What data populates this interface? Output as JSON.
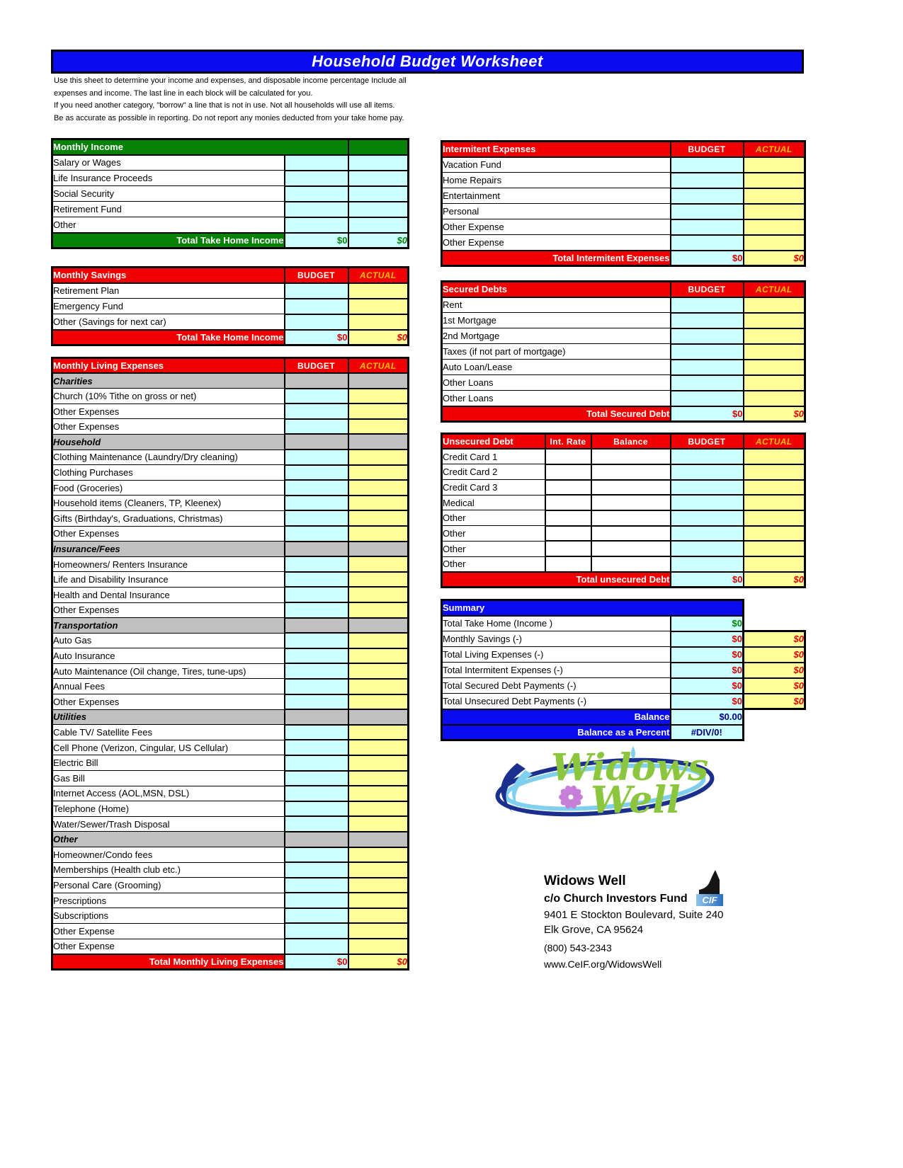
{
  "page": {
    "title": "Household Budget Worksheet",
    "intro_lines": [
      "Use this sheet to determine your income and expenses, and disposable income percentage Include all",
      "expenses and income. The last line in each block will be calculated for you.",
      "If you need another category, \"borrow\" a line that is not in use. Not all households will use all items.",
      "Be as accurate as possible in reporting. Do not report any monies deducted from your take home pay."
    ]
  },
  "colors": {
    "title_blue": "#0b0bf0",
    "header_red": "#f00000",
    "header_green": "#068206",
    "summary_blue": "#0b0bf0",
    "cell_cyan": "#ccffff",
    "cell_yellow": "#ffff99",
    "section_gray": "#c0c0c0",
    "actual_gold": "#ffc000",
    "value_red": "#dd0000",
    "value_green": "#068206",
    "value_navy": "#000080",
    "logo_green": "#8cc63f",
    "logo_navy": "#1b2f8e",
    "logo_lightblue": "#7fd0ee",
    "logo_purple": "#c77fd9"
  },
  "tables": {
    "monthly_income": {
      "header": [
        "Monthly Income"
      ],
      "rows": [
        "Salary or Wages",
        "Life Insurance Proceeds",
        "Social Security",
        "Retirement Fund",
        "Other"
      ],
      "total": {
        "label": "Total Take Home Income",
        "budget": "$0",
        "actual": "$0"
      }
    },
    "monthly_savings": {
      "header": [
        "Monthly Savings",
        "BUDGET",
        "ACTUAL"
      ],
      "rows": [
        "Retirement Plan",
        "Emergency Fund",
        "Other (Savings for next car)"
      ],
      "total": {
        "label": "Total Take Home Income",
        "budget": "$0",
        "actual": "$0"
      }
    },
    "living_expenses": {
      "header": [
        "Monthly Living Expenses",
        "BUDGET",
        "ACTUAL"
      ],
      "rows": [
        {
          "label": "Charities",
          "section": true
        },
        "Church (10% Tithe on gross or net)",
        "Other Expenses",
        "Other Expenses",
        {
          "label": "Household",
          "section": true
        },
        "Clothing Maintenance (Laundry/Dry cleaning)",
        "Clothing Purchases",
        "Food (Groceries)",
        "Household items (Cleaners, TP, Kleenex)",
        "Gifts (Birthday's, Graduations, Christmas)",
        "Other Expenses",
        {
          "label": "Insurance/Fees",
          "section": true
        },
        "Homeowners/ Renters Insurance",
        "Life and Disability Insurance",
        "Health and Dental Insurance",
        "Other Expenses",
        {
          "label": "Transportation",
          "section": true
        },
        "Auto Gas",
        "Auto Insurance",
        "Auto Maintenance (Oil change, Tires, tune-ups)",
        "Annual Fees",
        "Other Expenses",
        {
          "label": "Utilities",
          "section": true
        },
        "Cable TV/ Satellite Fees",
        "Cell Phone (Verizon, Cingular, US Cellular)",
        "Electric Bill",
        "Gas Bill",
        "Internet Access (AOL,MSN, DSL)",
        "Telephone (Home)",
        "Water/Sewer/Trash Disposal",
        {
          "label": "Other",
          "section": true
        },
        "Homeowner/Condo fees",
        "Memberships (Health club etc.)",
        "Personal Care (Grooming)",
        "Prescriptions",
        "Subscriptions",
        "Other Expense",
        "Other Expense"
      ],
      "total": {
        "label": "Total Monthly Living Expenses",
        "budget": "$0",
        "actual": "$0"
      }
    },
    "intermitent": {
      "header": [
        "Intermitent Expenses",
        "BUDGET",
        "ACTUAL"
      ],
      "rows": [
        "Vacation Fund",
        "Home Repairs",
        "Entertainment",
        "Personal",
        "Other Expense",
        "Other Expense"
      ],
      "total": {
        "label": "Total Intermitent Expenses",
        "budget": "$0",
        "actual": "$0"
      }
    },
    "secured": {
      "header": [
        "Secured Debts",
        "BUDGET",
        "ACTUAL"
      ],
      "rows": [
        "Rent",
        "1st Mortgage",
        "2nd Mortgage",
        "Taxes (if not part of mortgage)",
        "Auto Loan/Lease",
        "Other Loans",
        "Other Loans"
      ],
      "total": {
        "label": "Total Secured Debt",
        "budget": "$0",
        "actual": "$0"
      }
    },
    "unsecured": {
      "header": [
        "Unsecured Debt",
        "Int. Rate",
        "Balance",
        "BUDGET",
        "ACTUAL"
      ],
      "rows": [
        "Credit Card 1",
        "Credit Card 2",
        "Credit Card 3",
        "Medical",
        "Other",
        "Other",
        "Other",
        "Other"
      ],
      "total": {
        "label": "Total unsecured Debt",
        "budget": "$0",
        "actual": "$0"
      }
    },
    "summary": {
      "header": "Summary",
      "rows": [
        {
          "label": "Total Take Home (Income )",
          "budget": "$0",
          "color": "green",
          "actual": null
        },
        {
          "label": "Monthly Savings (-)",
          "budget": "$0",
          "color": "red",
          "actual": "$0"
        },
        {
          "label": "Total Living Expenses (-)",
          "budget": "$0",
          "color": "red",
          "actual": "$0"
        },
        {
          "label": "Total Intermitent Expenses (-)",
          "budget": "$0",
          "color": "red",
          "actual": "$0"
        },
        {
          "label": "Total Secured Debt Payments (-)",
          "budget": "$0",
          "color": "red",
          "actual": "$0"
        },
        {
          "label": "Total Unsecured Debt Payments (-)",
          "budget": "$0",
          "color": "red",
          "actual": "$0"
        }
      ],
      "balance_rows": [
        {
          "label": "Balance",
          "value": "$0.00",
          "center": false
        },
        {
          "label": "Balance as a Percent",
          "value": "#DIV/0!",
          "center": true
        }
      ]
    }
  },
  "logo": {
    "line1": "Widows",
    "line2": "Well"
  },
  "contact": {
    "name": "Widows Well",
    "org": "c/o Church Investors Fund",
    "address1": "9401 E Stockton Boulevard, Suite 240",
    "address2": "Elk Grove, CA 95624",
    "phone": "(800) 543-2343",
    "website": "www.CeIF.org/WidowsWell",
    "badge": "CIF"
  }
}
